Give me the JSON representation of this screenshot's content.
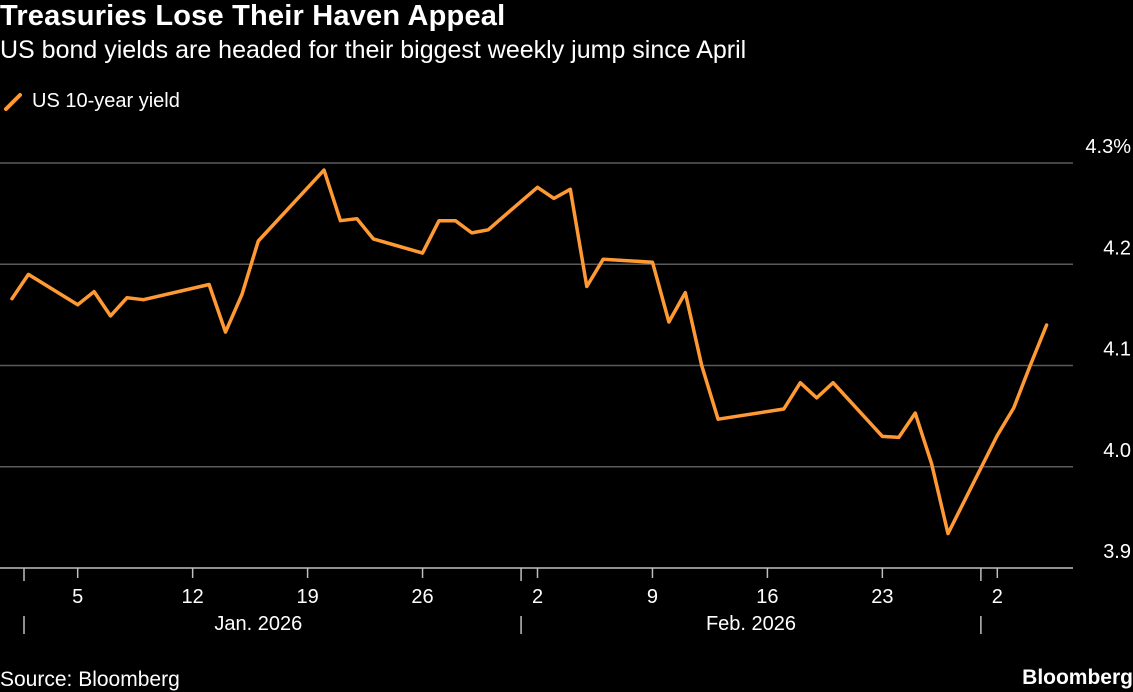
{
  "header": {
    "title": "Treasuries Lose Their Haven Appeal",
    "subtitle": "US bond yields are headed for their biggest weekly jump since April"
  },
  "legend": {
    "label": "US 10-year yield",
    "color": "#ff9933"
  },
  "footer": {
    "source": "Source: Bloomberg",
    "brand": "Bloomberg"
  },
  "chart_data": {
    "type": "line",
    "title": "Treasuries Lose Their Haven Appeal",
    "subtitle": "US bond yields are headed for their biggest weekly jump since April",
    "series": [
      {
        "name": "US 10-year yield",
        "color": "#ff9933",
        "points": [
          [
            "2026-01-01",
            4.166
          ],
          [
            "2026-01-02",
            4.19
          ],
          [
            "2026-01-05",
            4.16
          ],
          [
            "2026-01-06",
            4.173
          ],
          [
            "2026-01-07",
            4.149
          ],
          [
            "2026-01-08",
            4.167
          ],
          [
            "2026-01-09",
            4.165
          ],
          [
            "2026-01-13",
            4.18
          ],
          [
            "2026-01-14",
            4.133
          ],
          [
            "2026-01-15",
            4.17
          ],
          [
            "2026-01-16",
            4.223
          ],
          [
            "2026-01-20",
            4.293
          ],
          [
            "2026-01-21",
            4.243
          ],
          [
            "2026-01-22",
            4.245
          ],
          [
            "2026-01-23",
            4.225
          ],
          [
            "2026-01-26",
            4.211
          ],
          [
            "2026-01-27",
            4.243
          ],
          [
            "2026-01-28",
            4.243
          ],
          [
            "2026-01-29",
            4.231
          ],
          [
            "2026-01-30",
            4.234
          ],
          [
            "2026-02-02",
            4.276
          ],
          [
            "2026-02-03",
            4.265
          ],
          [
            "2026-02-04",
            4.274
          ],
          [
            "2026-02-05",
            4.178
          ],
          [
            "2026-02-06",
            4.205
          ],
          [
            "2026-02-09",
            4.202
          ],
          [
            "2026-02-10",
            4.143
          ],
          [
            "2026-02-11",
            4.172
          ],
          [
            "2026-02-12",
            4.1
          ],
          [
            "2026-02-13",
            4.047
          ],
          [
            "2026-02-17",
            4.057
          ],
          [
            "2026-02-18",
            4.083
          ],
          [
            "2026-02-19",
            4.068
          ],
          [
            "2026-02-20",
            4.083
          ],
          [
            "2026-02-23",
            4.03
          ],
          [
            "2026-02-24",
            4.029
          ],
          [
            "2026-02-25",
            4.053
          ],
          [
            "2026-02-26",
            4.003
          ],
          [
            "2026-02-27",
            3.934
          ],
          [
            "2026-03-02",
            4.031
          ],
          [
            "2026-03-03",
            4.058
          ],
          [
            "2026-03-04",
            4.1
          ],
          [
            "2026-03-05",
            4.14
          ]
        ]
      }
    ],
    "x_ticks": [
      [
        "2026-01-05",
        "5"
      ],
      [
        "2026-01-12",
        "12"
      ],
      [
        "2026-01-19",
        "19"
      ],
      [
        "2026-01-26",
        "26"
      ],
      [
        "2026-02-02",
        "2"
      ],
      [
        "2026-02-09",
        "9"
      ],
      [
        "2026-02-16",
        "16"
      ],
      [
        "2026-02-23",
        "23"
      ],
      [
        "2026-03-02",
        "2"
      ]
    ],
    "month_labels": [
      [
        "2026-01-16",
        "Jan. 2026"
      ],
      [
        "2026-02-15",
        "Feb. 2026"
      ]
    ],
    "month_dividers": [
      "2026-01-01",
      "2026-02-01",
      "2026-03-01"
    ],
    "x_range": [
      "2026-01-01",
      "2026-03-06"
    ],
    "y_ticks": [
      [
        3.9,
        "3.9"
      ],
      [
        4.0,
        "4.0"
      ],
      [
        4.1,
        "4.1"
      ],
      [
        4.2,
        "4.2"
      ],
      [
        4.3,
        "4.3%"
      ]
    ],
    "ylim": [
      3.9,
      4.3
    ],
    "grid": true,
    "y_axis_side": "right",
    "legend_position": "top-left"
  }
}
